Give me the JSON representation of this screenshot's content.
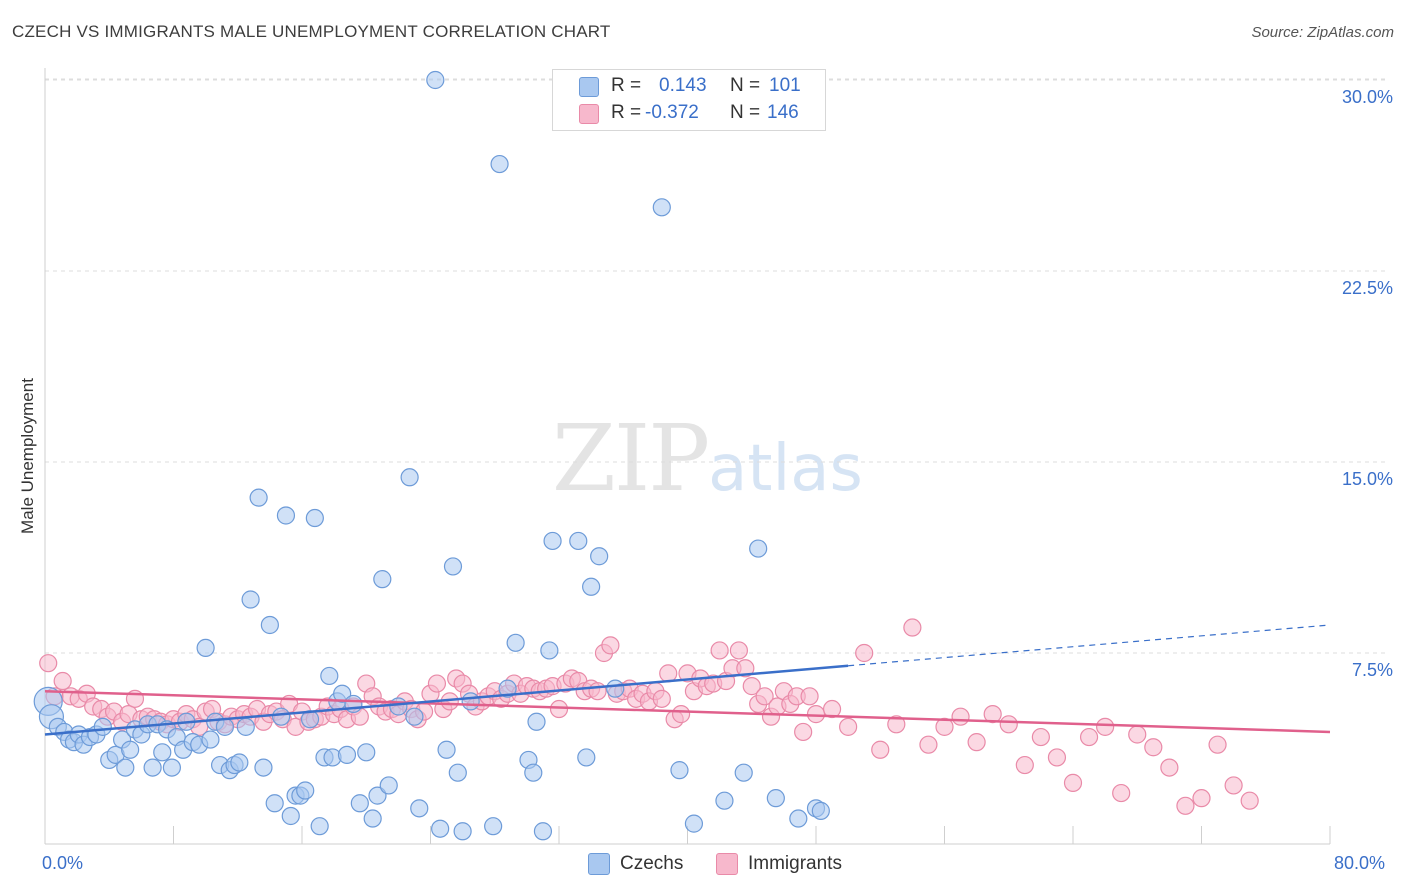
{
  "title": "CZECH VS IMMIGRANTS MALE UNEMPLOYMENT CORRELATION CHART",
  "source": "Source: ZipAtlas.com",
  "watermark": {
    "zip": "ZIP",
    "atlas": "atlas"
  },
  "legend_top": {
    "czechs": {
      "r_label": "R =",
      "r_value": "0.143",
      "n_label": "N =",
      "n_value": "101"
    },
    "immigrants": {
      "r_label": "R =",
      "r_value": "-0.372",
      "n_label": "N =",
      "n_value": "146"
    }
  },
  "legend_bottom": {
    "czechs": "Czechs",
    "immigrants": "Immigrants"
  },
  "colors": {
    "czech_fill": "#a9c8f0",
    "czech_stroke": "#6d9bd8",
    "czech_line": "#3a6fc9",
    "imm_fill": "#f7b8cc",
    "imm_stroke": "#e98aa8",
    "imm_line": "#e0608c",
    "axis_label": "#3a6fc9",
    "grid": "#dddddd"
  },
  "chart_data": {
    "type": "scatter",
    "title": "CZECH VS IMMIGRANTS MALE UNEMPLOYMENT CORRELATION CHART",
    "xlabel": "",
    "ylabel": "Male Unemployment",
    "xlim": [
      0,
      80
    ],
    "ylim": [
      0,
      30
    ],
    "x_tick_labels": [
      "0.0%",
      "80.0%"
    ],
    "y_tick_labels": [
      "7.5%",
      "15.0%",
      "22.5%",
      "30.0%"
    ],
    "y_ticks": [
      7.5,
      15,
      22.5,
      30
    ],
    "grid": true,
    "series": [
      {
        "name": "Czechs",
        "r": 0.143,
        "n": 101,
        "trend": {
          "x0": 0,
          "y0": 4.3,
          "x1": 50,
          "y1": 7.0,
          "dashed_to_x": 80,
          "dashed_to_y": 8.6
        },
        "points": [
          [
            0.2,
            5.6
          ],
          [
            0.4,
            5.0
          ],
          [
            0.8,
            4.6
          ],
          [
            1.2,
            4.4
          ],
          [
            1.5,
            4.1
          ],
          [
            1.8,
            4.0
          ],
          [
            2.1,
            4.3
          ],
          [
            2.4,
            3.9
          ],
          [
            2.8,
            4.2
          ],
          [
            3.2,
            4.3
          ],
          [
            3.6,
            4.6
          ],
          [
            4.0,
            3.3
          ],
          [
            4.4,
            3.5
          ],
          [
            4.8,
            4.1
          ],
          [
            5.0,
            3.0
          ],
          [
            5.3,
            3.7
          ],
          [
            5.6,
            4.5
          ],
          [
            6.0,
            4.3
          ],
          [
            6.4,
            4.7
          ],
          [
            6.7,
            3.0
          ],
          [
            7.0,
            4.7
          ],
          [
            7.3,
            3.6
          ],
          [
            7.6,
            4.5
          ],
          [
            7.9,
            3.0
          ],
          [
            8.2,
            4.2
          ],
          [
            8.6,
            3.7
          ],
          [
            8.8,
            4.8
          ],
          [
            9.2,
            4.0
          ],
          [
            9.6,
            3.9
          ],
          [
            10.0,
            7.7
          ],
          [
            10.3,
            4.1
          ],
          [
            10.6,
            4.8
          ],
          [
            10.9,
            3.1
          ],
          [
            11.2,
            4.6
          ],
          [
            11.5,
            2.9
          ],
          [
            11.8,
            3.1
          ],
          [
            12.1,
            3.2
          ],
          [
            12.5,
            4.6
          ],
          [
            12.8,
            9.6
          ],
          [
            13.3,
            13.6
          ],
          [
            13.6,
            3.0
          ],
          [
            14.0,
            8.6
          ],
          [
            14.3,
            1.6
          ],
          [
            14.7,
            5.0
          ],
          [
            15.0,
            12.9
          ],
          [
            15.3,
            1.1
          ],
          [
            15.6,
            1.9
          ],
          [
            15.9,
            1.9
          ],
          [
            16.2,
            2.1
          ],
          [
            16.5,
            4.9
          ],
          [
            16.8,
            12.8
          ],
          [
            17.1,
            0.7
          ],
          [
            17.4,
            3.4
          ],
          [
            17.7,
            6.6
          ],
          [
            17.9,
            3.4
          ],
          [
            18.2,
            5.6
          ],
          [
            18.5,
            5.9
          ],
          [
            18.8,
            3.5
          ],
          [
            19.2,
            5.5
          ],
          [
            19.6,
            1.6
          ],
          [
            20.0,
            3.6
          ],
          [
            20.4,
            1.0
          ],
          [
            20.7,
            1.9
          ],
          [
            21.0,
            10.4
          ],
          [
            21.4,
            2.3
          ],
          [
            22.0,
            5.4
          ],
          [
            22.7,
            14.4
          ],
          [
            23.0,
            5.0
          ],
          [
            23.3,
            1.4
          ],
          [
            24.3,
            30.0
          ],
          [
            24.6,
            0.6
          ],
          [
            25.0,
            3.7
          ],
          [
            25.4,
            10.9
          ],
          [
            25.7,
            2.8
          ],
          [
            26.0,
            0.5
          ],
          [
            26.5,
            5.6
          ],
          [
            27.9,
            0.7
          ],
          [
            28.3,
            26.7
          ],
          [
            28.8,
            6.1
          ],
          [
            29.3,
            7.9
          ],
          [
            30.1,
            3.3
          ],
          [
            30.4,
            2.8
          ],
          [
            30.6,
            4.8
          ],
          [
            31.0,
            0.5
          ],
          [
            31.4,
            7.6
          ],
          [
            31.6,
            11.9
          ],
          [
            33.2,
            11.9
          ],
          [
            33.7,
            3.4
          ],
          [
            34.0,
            10.1
          ],
          [
            34.5,
            11.3
          ],
          [
            35.5,
            6.1
          ],
          [
            38.4,
            25.0
          ],
          [
            39.5,
            2.9
          ],
          [
            40.4,
            0.8
          ],
          [
            42.3,
            1.7
          ],
          [
            43.5,
            2.8
          ],
          [
            44.4,
            11.6
          ],
          [
            45.5,
            1.8
          ],
          [
            46.9,
            1.0
          ],
          [
            48.0,
            1.4
          ],
          [
            48.3,
            1.3
          ]
        ]
      },
      {
        "name": "Immigrants",
        "r": -0.372,
        "n": 146,
        "trend": {
          "x0": 0,
          "y0": 6.0,
          "x1": 80,
          "y1": 4.4
        },
        "points": [
          [
            0.2,
            7.1
          ],
          [
            0.6,
            5.8
          ],
          [
            1.1,
            6.4
          ],
          [
            1.6,
            5.8
          ],
          [
            2.1,
            5.7
          ],
          [
            2.6,
            5.9
          ],
          [
            3.0,
            5.4
          ],
          [
            3.5,
            5.3
          ],
          [
            3.9,
            5.0
          ],
          [
            4.3,
            5.2
          ],
          [
            4.8,
            4.8
          ],
          [
            5.2,
            5.1
          ],
          [
            5.6,
            5.7
          ],
          [
            6.0,
            4.9
          ],
          [
            6.4,
            5.0
          ],
          [
            6.8,
            4.9
          ],
          [
            7.2,
            4.8
          ],
          [
            7.6,
            4.7
          ],
          [
            8.0,
            4.9
          ],
          [
            8.4,
            4.8
          ],
          [
            8.8,
            5.1
          ],
          [
            9.2,
            4.9
          ],
          [
            9.6,
            4.6
          ],
          [
            10.0,
            5.2
          ],
          [
            10.4,
            5.3
          ],
          [
            10.8,
            4.8
          ],
          [
            11.2,
            4.7
          ],
          [
            11.6,
            5.0
          ],
          [
            12.0,
            4.9
          ],
          [
            12.4,
            5.1
          ],
          [
            12.8,
            5.0
          ],
          [
            13.2,
            5.3
          ],
          [
            13.6,
            4.8
          ],
          [
            14.0,
            5.1
          ],
          [
            14.4,
            5.2
          ],
          [
            14.8,
            4.9
          ],
          [
            15.2,
            5.5
          ],
          [
            15.6,
            4.6
          ],
          [
            16.0,
            5.2
          ],
          [
            16.4,
            4.8
          ],
          [
            16.8,
            4.9
          ],
          [
            17.2,
            5.0
          ],
          [
            17.6,
            5.4
          ],
          [
            18.0,
            5.1
          ],
          [
            18.4,
            5.3
          ],
          [
            18.8,
            4.9
          ],
          [
            19.2,
            5.4
          ],
          [
            19.6,
            5.0
          ],
          [
            20.0,
            6.3
          ],
          [
            20.4,
            5.8
          ],
          [
            20.8,
            5.4
          ],
          [
            21.2,
            5.2
          ],
          [
            21.6,
            5.3
          ],
          [
            22.0,
            5.1
          ],
          [
            22.4,
            5.6
          ],
          [
            22.8,
            5.3
          ],
          [
            23.2,
            4.9
          ],
          [
            23.6,
            5.2
          ],
          [
            24.0,
            5.9
          ],
          [
            24.4,
            6.3
          ],
          [
            24.8,
            5.3
          ],
          [
            25.2,
            5.6
          ],
          [
            25.6,
            6.5
          ],
          [
            26.0,
            6.3
          ],
          [
            26.4,
            5.9
          ],
          [
            26.8,
            5.4
          ],
          [
            27.2,
            5.6
          ],
          [
            27.6,
            5.8
          ],
          [
            28.0,
            6.0
          ],
          [
            28.4,
            5.7
          ],
          [
            28.8,
            5.9
          ],
          [
            29.2,
            6.3
          ],
          [
            29.6,
            5.9
          ],
          [
            30.0,
            6.2
          ],
          [
            30.4,
            6.1
          ],
          [
            30.8,
            6.0
          ],
          [
            31.2,
            6.1
          ],
          [
            31.6,
            6.2
          ],
          [
            32.0,
            5.3
          ],
          [
            32.4,
            6.3
          ],
          [
            32.8,
            6.5
          ],
          [
            33.2,
            6.4
          ],
          [
            33.6,
            6.0
          ],
          [
            34.0,
            6.1
          ],
          [
            34.4,
            6.0
          ],
          [
            34.8,
            7.5
          ],
          [
            35.2,
            7.8
          ],
          [
            35.6,
            5.9
          ],
          [
            36.0,
            6.0
          ],
          [
            36.4,
            6.1
          ],
          [
            36.8,
            5.7
          ],
          [
            37.2,
            5.9
          ],
          [
            37.6,
            5.6
          ],
          [
            38.0,
            6.0
          ],
          [
            38.4,
            5.7
          ],
          [
            38.8,
            6.7
          ],
          [
            39.2,
            4.9
          ],
          [
            39.6,
            5.1
          ],
          [
            40.0,
            6.7
          ],
          [
            40.4,
            6.0
          ],
          [
            40.8,
            6.5
          ],
          [
            41.2,
            6.2
          ],
          [
            41.6,
            6.3
          ],
          [
            42.0,
            7.6
          ],
          [
            42.4,
            6.4
          ],
          [
            42.8,
            6.9
          ],
          [
            43.2,
            7.6
          ],
          [
            43.6,
            6.9
          ],
          [
            44.0,
            6.2
          ],
          [
            44.4,
            5.5
          ],
          [
            44.8,
            5.8
          ],
          [
            45.2,
            5.0
          ],
          [
            45.6,
            5.4
          ],
          [
            46.0,
            6.0
          ],
          [
            46.4,
            5.5
          ],
          [
            46.8,
            5.8
          ],
          [
            47.2,
            4.4
          ],
          [
            47.6,
            5.8
          ],
          [
            48.0,
            5.1
          ],
          [
            49.0,
            5.3
          ],
          [
            50.0,
            4.6
          ],
          [
            51.0,
            7.5
          ],
          [
            52.0,
            3.7
          ],
          [
            53.0,
            4.7
          ],
          [
            54.0,
            8.5
          ],
          [
            55.0,
            3.9
          ],
          [
            56.0,
            4.6
          ],
          [
            57.0,
            5.0
          ],
          [
            58.0,
            4.0
          ],
          [
            59.0,
            5.1
          ],
          [
            60.0,
            4.7
          ],
          [
            61.0,
            3.1
          ],
          [
            62.0,
            4.2
          ],
          [
            63.0,
            3.4
          ],
          [
            64.0,
            2.4
          ],
          [
            65.0,
            4.2
          ],
          [
            66.0,
            4.6
          ],
          [
            67.0,
            2.0
          ],
          [
            68.0,
            4.3
          ],
          [
            69.0,
            3.8
          ],
          [
            70.0,
            3.0
          ],
          [
            71.0,
            1.5
          ],
          [
            72.0,
            1.8
          ],
          [
            73.0,
            3.9
          ],
          [
            74.0,
            2.3
          ],
          [
            75.0,
            1.7
          ]
        ]
      }
    ]
  }
}
